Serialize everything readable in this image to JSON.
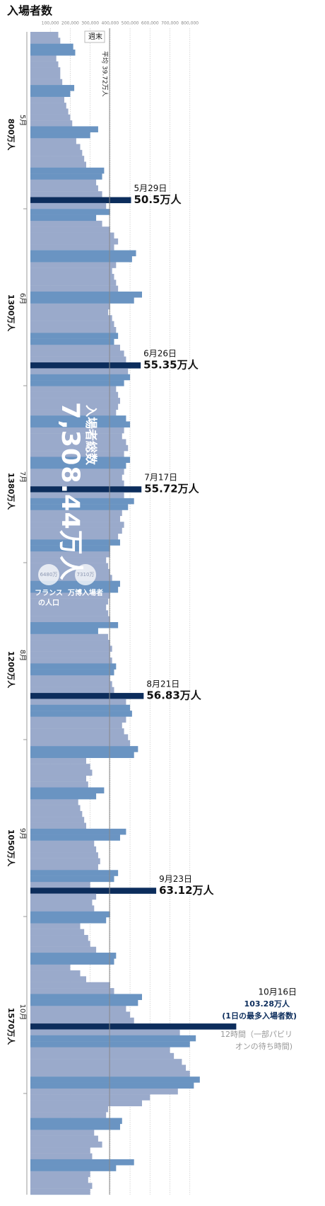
{
  "chart_data": {
    "type": "bar",
    "title": "入場者数",
    "xlim": [
      0,
      1400000
    ],
    "xticks": [
      {
        "value": 100000,
        "label": "100,000"
      },
      {
        "value": 200000,
        "label": "200,000"
      },
      {
        "value": 300000,
        "label": "300,000"
      },
      {
        "value": 400000,
        "label": "400,000"
      },
      {
        "value": 500000,
        "label": "500,000"
      },
      {
        "value": 600000,
        "label": "600,000"
      },
      {
        "value": 700000,
        "label": "700,000"
      },
      {
        "value": 800000,
        "label": "800,000"
      }
    ],
    "grid": true,
    "highlight_color": "#0c2d5c",
    "average": 397200,
    "average_label": "平均 39.72万人",
    "total_title": "入場者総数",
    "total_value": "7,308.44万人",
    "comparisons": [
      {
        "value": "6480万",
        "lines": [
          "フランス",
          "の人口"
        ]
      },
      {
        "value": "7310万",
        "lines": [
          "万博入場者"
        ]
      }
    ],
    "max_note": "(1日の最多入場者数)",
    "max_annotation": [
      "12時間（一部パビリ",
      "オンの待ち時間)"
    ],
    "months": [
      {
        "name": "5月",
        "total": "800万人"
      },
      {
        "name": "6月",
        "total": "1300万人"
      },
      {
        "name": "7月",
        "total": "1380万人"
      },
      {
        "name": "8月",
        "total": "1200万人"
      },
      {
        "name": "9月",
        "total": "1050万人"
      },
      {
        "name": "10月",
        "total": "1570万人"
      }
    ],
    "categories": [
      null,
      null,
      null,
      null,
      null,
      null,
      null,
      null,
      null,
      null,
      null,
      null,
      null,
      null,
      null,
      null,
      null,
      null,
      null,
      null,
      null,
      null,
      null,
      null,
      null,
      null,
      null,
      null,
      "5月29日",
      null,
      null,
      null,
      null,
      null,
      null,
      null,
      null,
      null,
      null,
      null,
      null,
      null,
      null,
      null,
      null,
      null,
      null,
      null,
      null,
      null,
      null,
      null,
      null,
      null,
      null,
      null,
      "6月26日",
      null,
      null,
      null,
      null,
      null,
      null,
      null,
      null,
      null,
      null,
      null,
      null,
      null,
      null,
      null,
      null,
      null,
      null,
      null,
      null,
      "7月17日",
      null,
      null,
      null,
      null,
      null,
      null,
      null,
      null,
      null,
      null,
      null,
      null,
      null,
      null,
      null,
      null,
      null,
      null,
      null,
      null,
      null,
      null,
      null,
      null,
      null,
      null,
      null,
      null,
      null,
      null,
      null,
      null,
      null,
      null,
      "8月21日",
      null,
      null,
      null,
      null,
      null,
      null,
      null,
      null,
      null,
      null,
      null,
      null,
      null,
      null,
      null,
      null,
      null,
      null,
      null,
      null,
      null,
      null,
      null,
      null,
      null,
      null,
      null,
      null,
      null,
      null,
      null,
      null,
      "9月23日",
      null,
      null,
      null,
      null,
      null,
      null,
      null,
      null,
      null,
      null,
      null,
      null,
      null,
      null,
      null,
      null,
      null,
      null,
      null,
      null,
      null,
      null,
      "10月16日",
      null,
      null,
      null,
      null,
      null,
      null,
      null,
      null,
      null,
      null,
      null,
      null,
      null,
      null,
      null,
      null,
      null,
      null,
      null,
      null,
      null,
      null,
      null,
      null,
      null,
      null,
      null,
      null
    ],
    "series": [
      {
        "color": "#9aaacb",
        "values": [
          140000,
          150000,
          null,
          null,
          130000,
          140000,
          150000,
          150000,
          160000,
          null,
          null,
          170000,
          180000,
          190000,
          200000,
          210000,
          null,
          null,
          230000,
          250000,
          260000,
          270000,
          280000,
          null,
          null,
          330000,
          340000,
          360000,
          505000,
          380000,
          null,
          null,
          360000,
          400000,
          420000,
          440000,
          420000,
          null,
          null,
          430000,
          410000,
          420000,
          430000,
          440000,
          null,
          null,
          400000,
          390000,
          410000,
          420000,
          430000,
          null,
          null,
          450000,
          470000,
          480000,
          553500,
          490000,
          null,
          null,
          430000,
          440000,
          450000,
          440000,
          430000,
          null,
          null,
          470000,
          460000,
          480000,
          490000,
          470000,
          null,
          null,
          470000,
          460000,
          470000,
          557200,
          470000,
          null,
          null,
          460000,
          450000,
          470000,
          460000,
          440000,
          null,
          null,
          400000,
          380000,
          390000,
          400000,
          410000,
          null,
          null,
          400000,
          390000,
          380000,
          390000,
          400000,
          null,
          null,
          390000,
          400000,
          410000,
          400000,
          410000,
          null,
          null,
          400000,
          410000,
          420000,
          568300,
          480000,
          null,
          null,
          480000,
          460000,
          470000,
          490000,
          500000,
          null,
          null,
          280000,
          300000,
          310000,
          280000,
          290000,
          null,
          null,
          240000,
          250000,
          260000,
          270000,
          280000,
          null,
          null,
          320000,
          330000,
          340000,
          350000,
          340000,
          null,
          null,
          300000,
          631200,
          330000,
          310000,
          320000,
          null,
          null,
          250000,
          270000,
          290000,
          300000,
          330000,
          null,
          null,
          200000,
          250000,
          280000,
          400000,
          420000,
          null,
          null,
          480000,
          500000,
          520000,
          1032800,
          750000,
          null,
          null,
          700000,
          720000,
          760000,
          780000,
          800000,
          null,
          null,
          740000,
          600000,
          560000,
          390000,
          380000,
          null,
          null,
          320000,
          340000,
          360000,
          300000,
          310000,
          null,
          null,
          300000,
          290000,
          310000,
          300000
        ],
        "value_labels": [
          null,
          null,
          null,
          null,
          null,
          null,
          null,
          null,
          null,
          null,
          null,
          null,
          null,
          null,
          null,
          null,
          null,
          null,
          null,
          null,
          null,
          null,
          null,
          null,
          null,
          null,
          null,
          null,
          "50.5万人",
          null,
          null,
          null,
          null,
          null,
          null,
          null,
          null,
          null,
          null,
          null,
          null,
          null,
          null,
          null,
          null,
          null,
          null,
          null,
          null,
          null,
          null,
          null,
          null,
          null,
          null,
          null,
          "55.35万人",
          null,
          null,
          null,
          null,
          null,
          null,
          null,
          null,
          null,
          null,
          null,
          null,
          null,
          null,
          null,
          null,
          null,
          null,
          null,
          null,
          "55.72万人",
          null,
          null,
          null,
          null,
          null,
          null,
          null,
          null,
          null,
          null,
          null,
          null,
          null,
          null,
          null,
          null,
          null,
          null,
          null,
          null,
          null,
          null,
          null,
          null,
          null,
          null,
          null,
          null,
          null,
          null,
          null,
          null,
          null,
          null,
          "56.83万人",
          null,
          null,
          null,
          null,
          null,
          null,
          null,
          null,
          null,
          null,
          null,
          null,
          null,
          null,
          null,
          null,
          null,
          null,
          null,
          null,
          null,
          null,
          null,
          null,
          null,
          null,
          null,
          null,
          null,
          null,
          null,
          null,
          "63.12万人",
          null,
          null,
          null,
          null,
          null,
          null,
          null,
          null,
          null,
          null,
          null,
          null,
          null,
          null,
          null,
          null,
          null,
          null,
          null,
          null,
          null,
          null,
          "103.28万人",
          null,
          null,
          null,
          null,
          null,
          null,
          null,
          null,
          null,
          null,
          null,
          null,
          null,
          null,
          null,
          null,
          null,
          null,
          null,
          null,
          null,
          null,
          null,
          null,
          null,
          null,
          null,
          null
        ]
      },
      {
        "name": "週末",
        "color": "#6a94c2",
        "values": [
          null,
          null,
          215000,
          225000,
          null,
          null,
          null,
          null,
          null,
          220000,
          200000,
          null,
          null,
          null,
          null,
          null,
          340000,
          300000,
          null,
          null,
          null,
          null,
          null,
          370000,
          360000,
          null,
          null,
          null,
          null,
          null,
          400000,
          330000,
          null,
          null,
          null,
          null,
          null,
          530000,
          510000,
          null,
          null,
          null,
          null,
          null,
          560000,
          520000,
          null,
          null,
          null,
          null,
          null,
          440000,
          420000,
          null,
          null,
          null,
          null,
          null,
          500000,
          470000,
          null,
          null,
          null,
          null,
          null,
          480000,
          500000,
          null,
          null,
          null,
          null,
          null,
          500000,
          480000,
          null,
          null,
          null,
          null,
          null,
          520000,
          490000,
          null,
          null,
          null,
          null,
          null,
          450000,
          400000,
          null,
          null,
          null,
          null,
          null,
          450000,
          440000,
          null,
          null,
          null,
          null,
          null,
          440000,
          340000,
          null,
          null,
          null,
          null,
          null,
          430000,
          420000,
          null,
          null,
          null,
          null,
          null,
          500000,
          510000,
          null,
          null,
          null,
          null,
          null,
          540000,
          520000,
          null,
          null,
          null,
          null,
          null,
          370000,
          330000,
          null,
          null,
          null,
          null,
          null,
          480000,
          450000,
          null,
          null,
          null,
          null,
          null,
          440000,
          420000,
          null,
          null,
          null,
          null,
          null,
          400000,
          380000,
          null,
          null,
          null,
          null,
          null,
          430000,
          420000,
          null,
          null,
          null,
          null,
          null,
          560000,
          540000,
          null,
          null,
          null,
          null,
          null,
          830000,
          800000,
          null,
          null,
          null,
          null,
          null,
          850000,
          820000,
          null,
          null,
          null,
          null,
          null,
          460000,
          450000,
          null,
          null,
          null,
          null,
          null,
          520000,
          430000,
          null,
          null,
          null,
          null
        ]
      }
    ]
  }
}
